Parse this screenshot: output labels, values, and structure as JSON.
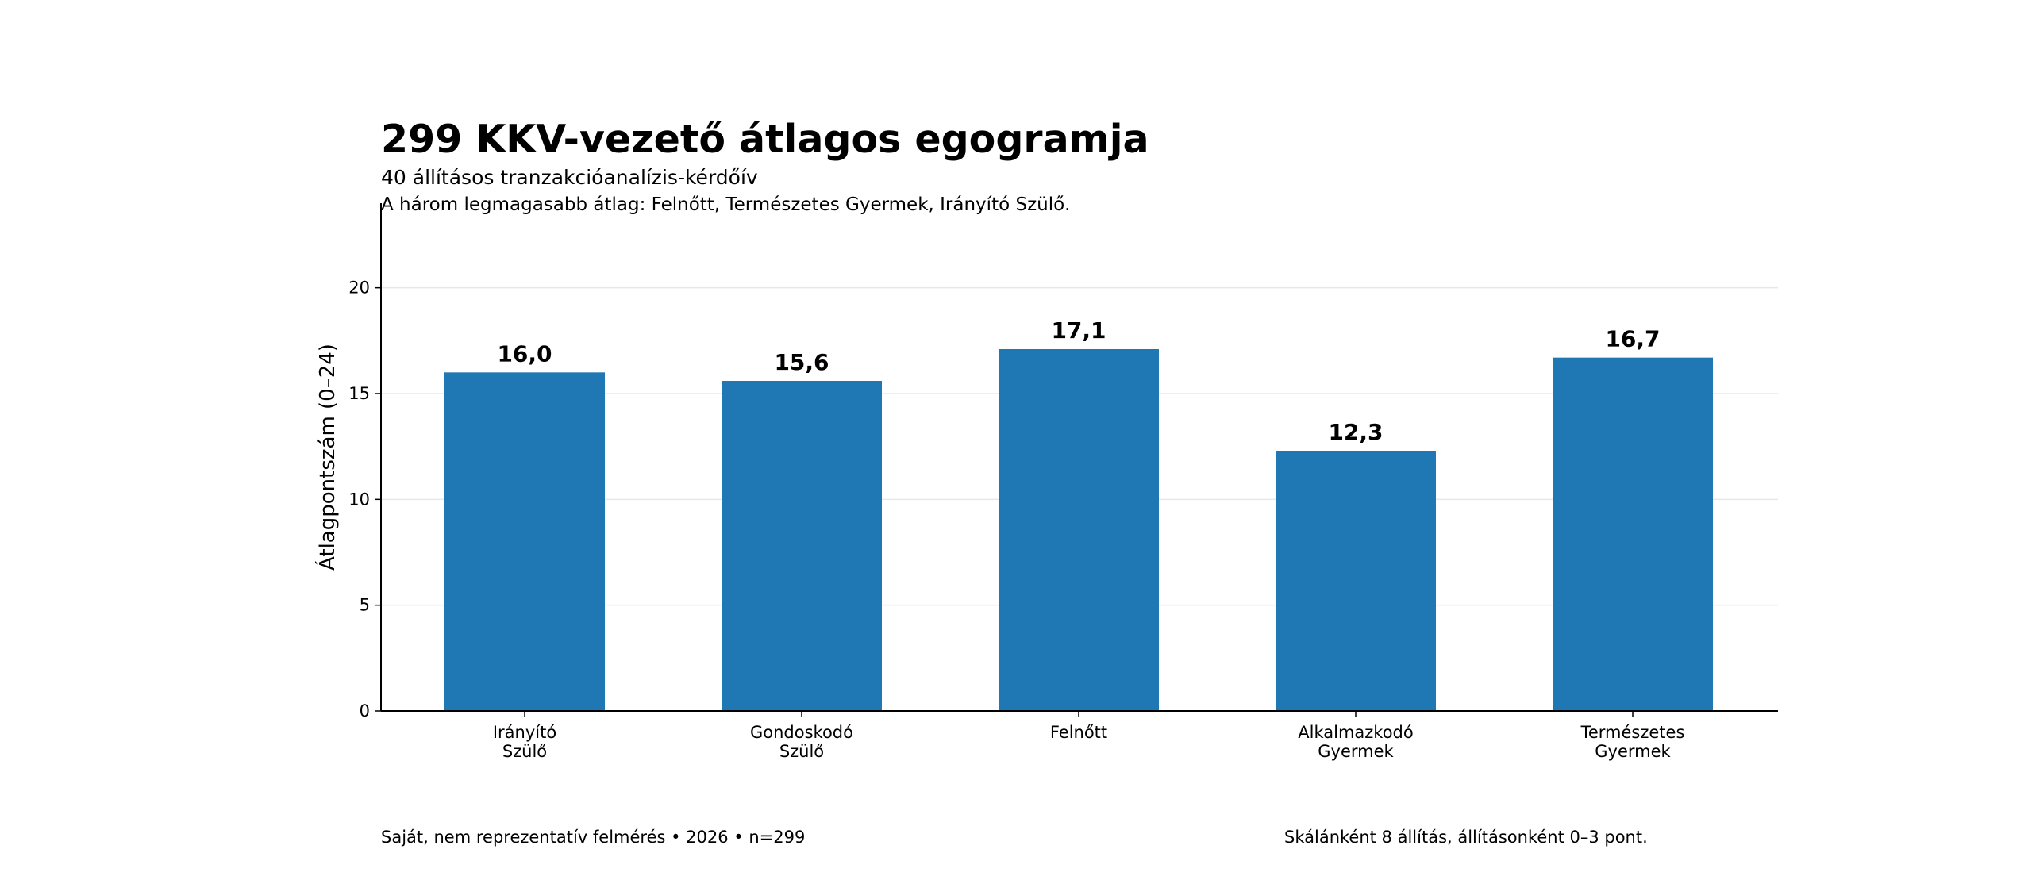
{
  "header": {
    "title": "299 KKV-vezető átlagos egogramja",
    "subtitle": "40 állításos tranzakcióanalízis-kérdőív",
    "note": "A három legmagasabb átlag: Felnőtt, Természetes Gyermek, Irányító Szülő."
  },
  "footer": {
    "source": "Saját, nem reprezentatív felmérés • 2026 • n=299",
    "method": "Skálánként 8 állítás, állításonként 0–3 pont."
  },
  "colors": {
    "bar": "#1f77b4",
    "grid": "#e8e8e8",
    "axis": "#000000"
  },
  "chart_data": {
    "type": "bar",
    "categories": [
      [
        "Irányító",
        "Szülő"
      ],
      [
        "Gondoskodó",
        "Szülő"
      ],
      [
        "Felnőtt"
      ],
      [
        "Alkalmazkodó",
        "Gyermek"
      ],
      [
        "Természetes",
        "Gyermek"
      ]
    ],
    "values": [
      16.0,
      15.6,
      17.1,
      12.3,
      16.7
    ],
    "value_labels": [
      "16,0",
      "15,6",
      "17,1",
      "12,3",
      "16,7"
    ],
    "ylabel": "Átlagpontszám (0–24)",
    "ylim": [
      0,
      24
    ],
    "yticks": [
      0,
      5,
      10,
      15,
      20
    ],
    "grid": "horizontal"
  }
}
